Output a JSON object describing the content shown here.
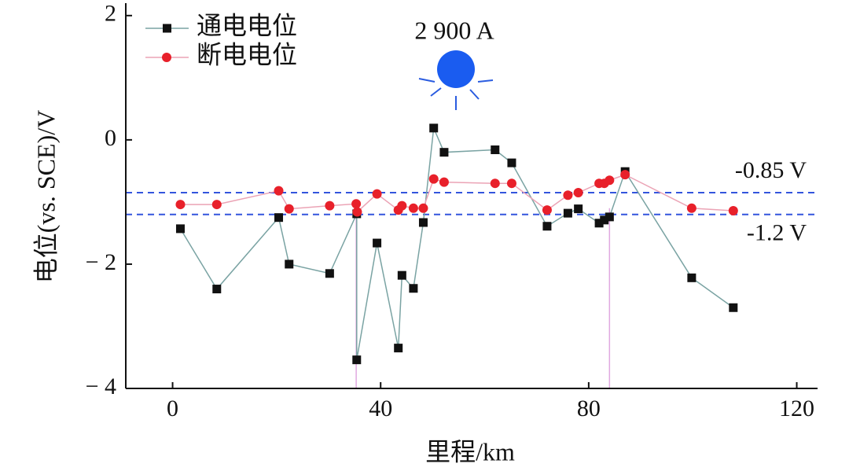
{
  "chart_data": {
    "type": "line",
    "xlabel": "里程/km",
    "ylabel": "电位(vs. SCE)/V",
    "annotation": "2 900 A",
    "xlim": [
      -9,
      124
    ],
    "xticks": [
      0,
      40,
      80,
      120
    ],
    "ylim": [
      -4,
      2.2
    ],
    "yticks": [
      {
        "value": 2,
        "label": "2"
      },
      {
        "value": 0,
        "label": "0"
      },
      {
        "value": -2,
        "label": "− 2"
      },
      {
        "value": -4,
        "label": "− 4"
      }
    ],
    "hlines": [
      {
        "value": -0.85,
        "label": "-0.85 V"
      },
      {
        "value": -1.2,
        "label": "-1.2 V"
      }
    ],
    "hline_color": "#3355dd",
    "vlines": [
      35.3,
      84
    ],
    "vline_color": "#e0a8e0",
    "legend": "upper left",
    "series": [
      {
        "name": "通电电位",
        "color": "#111111",
        "line_color": "#7aa3a3",
        "marker": "square",
        "x": [
          1.5,
          8.5,
          20.4,
          22.4,
          30.2,
          35.4,
          35.4,
          39.3,
          43.4,
          44.1,
          46.3,
          48.2,
          50.2,
          52.2,
          62,
          65.2,
          72,
          76,
          78,
          82,
          83,
          84,
          87,
          99.8,
          107.8
        ],
        "values": [
          -1.43,
          -2.4,
          -1.25,
          -2.0,
          -2.15,
          -1.19,
          -3.54,
          -1.66,
          -3.35,
          -2.18,
          -2.39,
          -1.33,
          0.19,
          -0.2,
          -0.16,
          -0.37,
          -1.39,
          -1.18,
          -1.11,
          -1.34,
          -1.29,
          -1.24,
          -0.51,
          -2.22,
          -2.7
        ]
      },
      {
        "name": "断电电位",
        "color": "#e8202a",
        "line_color": "#eba3b5",
        "marker": "circle",
        "x": [
          1.5,
          8.5,
          20.4,
          22.4,
          30.2,
          35.3,
          35.5,
          39.3,
          43.4,
          44.1,
          46.3,
          48.2,
          50.2,
          52.2,
          62,
          65.2,
          72,
          76,
          78,
          82,
          83,
          84,
          87,
          99.8,
          107.8
        ],
        "values": [
          -1.04,
          -1.04,
          -0.82,
          -1.11,
          -1.06,
          -1.03,
          -1.16,
          -0.87,
          -1.13,
          -1.06,
          -1.1,
          -1.1,
          -0.63,
          -0.68,
          -0.7,
          -0.7,
          -1.13,
          -0.89,
          -0.85,
          -0.7,
          -0.7,
          -0.65,
          -0.56,
          -1.1,
          -1.14
        ]
      }
    ]
  }
}
